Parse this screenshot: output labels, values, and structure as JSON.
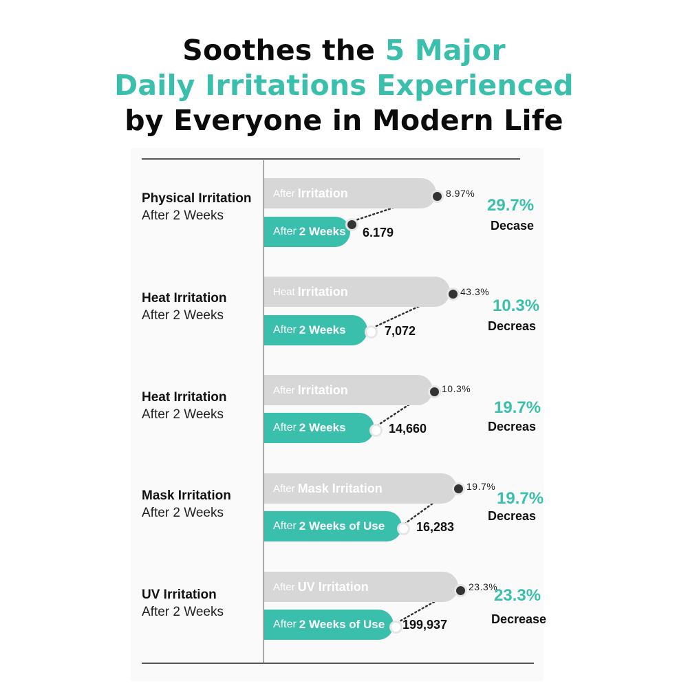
{
  "title": {
    "line1_dark": "Soothes the ",
    "line1_teal": "5 Major",
    "line2_teal": "Daily Irritations Experienced",
    "line3_dark": "by Everyone in Modern Life"
  },
  "colors": {
    "accent": "#3bbfad",
    "bar_gray": "#d7d7d7",
    "text_dark": "#111111"
  },
  "chart_data": {
    "type": "bar",
    "rows": [
      {
        "label": "Physical Irritation",
        "sublabel": "After 2 Weeks",
        "top_bar_prefix": "After",
        "top_bar_main": "Irritation",
        "bottom_bar_prefix": "After",
        "bottom_bar_main": "2 Weeks",
        "end_value": "8.97%",
        "start_value": "6.179",
        "change_pct": "29.7%",
        "change_label": "Decase"
      },
      {
        "label": "Heat Irritation",
        "sublabel": "After 2 Weeks",
        "top_bar_prefix": "Heat",
        "top_bar_main": "Irritation",
        "bottom_bar_prefix": "After",
        "bottom_bar_main": "2 Weeks",
        "end_value": "43.3%",
        "start_value": "7,072",
        "change_pct": "10.3%",
        "change_label": "Decreas"
      },
      {
        "label": "Heat Irritation",
        "sublabel": "After 2 Weeks",
        "top_bar_prefix": "After",
        "top_bar_main": "Irritation",
        "bottom_bar_prefix": "After",
        "bottom_bar_main": "2 Weeks",
        "end_value": "10.3%",
        "start_value": "14,660",
        "change_pct": "19.7%",
        "change_label": "Decreas"
      },
      {
        "label": "Mask Irritation",
        "sublabel": "After 2 Weeks",
        "top_bar_prefix": "After",
        "top_bar_main": "Mask Irritation",
        "bottom_bar_prefix": "After",
        "bottom_bar_main": "2 Weeks of Use",
        "end_value": "19.7%",
        "start_value": "16,283",
        "change_pct": "19.7%",
        "change_label": "Decreas"
      },
      {
        "label": "UV Irritation",
        "sublabel": "After 2 Weeks",
        "top_bar_prefix": "After",
        "top_bar_main": "UV Irritation",
        "bottom_bar_prefix": "After",
        "bottom_bar_main": "2 Weeks of Use",
        "end_value": "23.3%",
        "start_value": "199,937",
        "change_pct": "23.3%",
        "change_label": "Decrease"
      }
    ]
  }
}
